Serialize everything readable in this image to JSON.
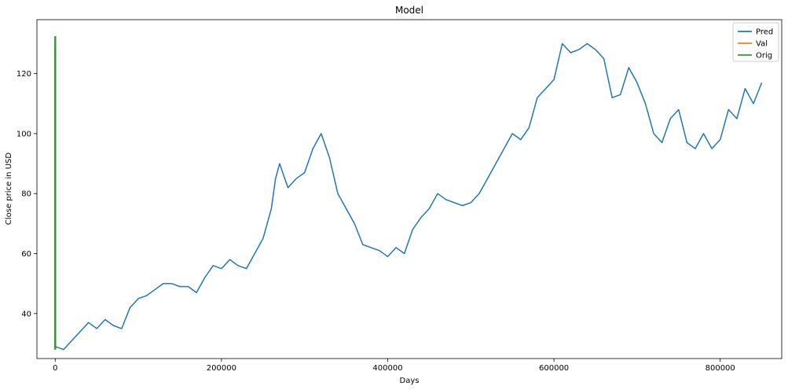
{
  "chart_data": {
    "type": "line",
    "title": "Model",
    "xlabel": "Days",
    "ylabel": "Close price in USD",
    "xlim": [
      -22000,
      874000
    ],
    "ylim": [
      25,
      138
    ],
    "x_ticks": [
      0,
      200000,
      400000,
      600000,
      800000
    ],
    "x_tick_labels": [
      "0",
      "200000",
      "400000",
      "600000",
      "800000"
    ],
    "y_ticks": [
      40,
      60,
      80,
      100,
      120
    ],
    "y_tick_labels": [
      "40",
      "60",
      "80",
      "100",
      "120"
    ],
    "grid": false,
    "legend_position": "top-right",
    "series": [
      {
        "name": "Pred",
        "color": "#1f77b4",
        "x": [
          0,
          10000,
          20000,
          30000,
          40000,
          50000,
          60000,
          70000,
          80000,
          90000,
          100000,
          110000,
          120000,
          130000,
          140000,
          150000,
          160000,
          170000,
          180000,
          190000,
          200000,
          210000,
          220000,
          230000,
          240000,
          250000,
          260000,
          265000,
          270000,
          280000,
          290000,
          300000,
          310000,
          320000,
          330000,
          340000,
          350000,
          360000,
          370000,
          380000,
          390000,
          400000,
          410000,
          420000,
          430000,
          440000,
          450000,
          460000,
          470000,
          480000,
          490000,
          500000,
          510000,
          520000,
          530000,
          540000,
          550000,
          560000,
          570000,
          580000,
          590000,
          600000,
          610000,
          620000,
          630000,
          640000,
          650000,
          660000,
          670000,
          680000,
          690000,
          700000,
          710000,
          720000,
          730000,
          740000,
          750000,
          760000,
          770000,
          780000,
          790000,
          800000,
          810000,
          820000,
          830000,
          840000,
          850000
        ],
        "values": [
          29,
          28,
          31,
          34,
          37,
          35,
          38,
          36,
          35,
          42,
          45,
          46,
          48,
          50,
          50,
          49,
          49,
          47,
          52,
          56,
          55,
          58,
          56,
          55,
          60,
          65,
          75,
          85,
          90,
          82,
          85,
          87,
          95,
          100,
          92,
          80,
          75,
          70,
          63,
          62,
          61,
          59,
          62,
          60,
          68,
          72,
          75,
          80,
          78,
          77,
          76,
          77,
          80,
          85,
          90,
          95,
          100,
          98,
          102,
          112,
          115,
          118,
          130,
          127,
          128,
          130,
          128,
          125,
          112,
          113,
          122,
          117,
          110,
          100,
          97,
          105,
          108,
          97,
          95,
          100,
          95,
          98,
          108,
          105,
          115,
          110,
          117
        ]
      },
      {
        "name": "Val",
        "color": "#ff7f0e",
        "x": [
          0,
          0
        ],
        "values": [
          28,
          129
        ]
      },
      {
        "name": "Orig",
        "color": "#2ca02c",
        "x": [
          0,
          0
        ],
        "values": [
          28,
          132.5
        ]
      }
    ]
  }
}
